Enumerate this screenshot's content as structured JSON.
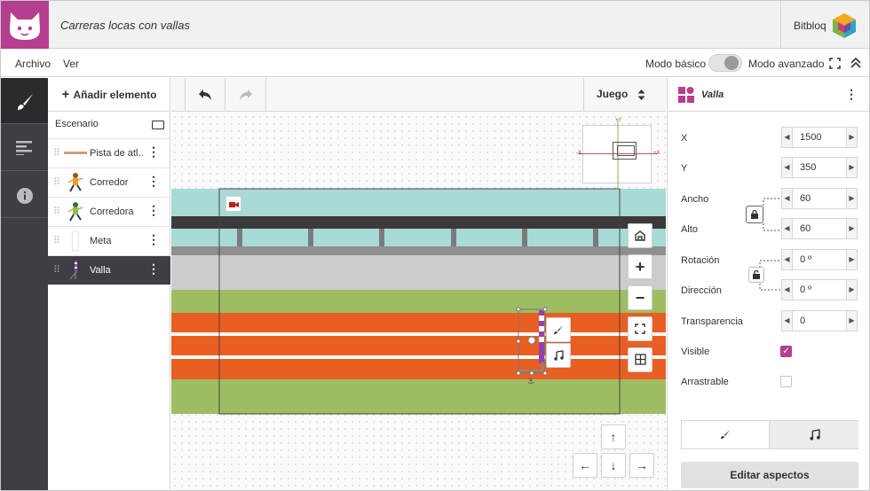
{
  "app": {
    "project_title": "Carreras locas con vallas",
    "brand_name": "Bitbloq",
    "brand_color": "#b63e8f"
  },
  "menubar": {
    "file_label": "Archivo",
    "view_label": "Ver",
    "basic_mode_label": "Modo básico",
    "advanced_mode_label": "Modo avanzado"
  },
  "left_nav": {
    "tabs": [
      {
        "icon": "brush-icon",
        "active": true
      },
      {
        "icon": "align-left-icon",
        "active": false
      },
      {
        "icon": "info-icon",
        "active": false
      }
    ]
  },
  "elements": {
    "add_label": "Añadir elemento",
    "scene_label": "Escenario",
    "items": [
      {
        "label": "Pista de atl…",
        "icon": "track-thumb-icon",
        "selected": false
      },
      {
        "label": "Corredor",
        "icon": "runner-thumb-icon",
        "selected": false
      },
      {
        "label": "Corredora",
        "icon": "runner-female-thumb-icon",
        "selected": false
      },
      {
        "label": "Meta",
        "icon": "finish-line-thumb-icon",
        "selected": false
      },
      {
        "label": "Valla",
        "icon": "hurdle-thumb-icon",
        "selected": true
      }
    ]
  },
  "canvas": {
    "scene_selector": "Juego",
    "minimap": {
      "plus_y": "+Y",
      "minus_x": "-X",
      "plus_x": "+X"
    }
  },
  "properties": {
    "element_name": "Valla",
    "fields": {
      "x": {
        "label": "X",
        "value": "1500"
      },
      "y": {
        "label": "Y",
        "value": "350"
      },
      "width": {
        "label": "Ancho",
        "value": "60"
      },
      "height": {
        "label": "Alto",
        "value": "60"
      },
      "rotation": {
        "label": "Rotación",
        "value": "0 º"
      },
      "direction": {
        "label": "Dirección",
        "value": "0 º"
      },
      "transparency": {
        "label": "Transparencia",
        "value": "0"
      }
    },
    "visible": {
      "label": "Visible",
      "checked": true
    },
    "draggable": {
      "label": "Arrastrable",
      "checked": false
    },
    "tabs": [
      {
        "icon": "brush-icon",
        "active": true
      },
      {
        "icon": "music-icon",
        "active": false
      }
    ],
    "edit_button": "Editar aspectos"
  },
  "colors": {
    "sidebar_dark": "#3d3f44",
    "accent": "#b63e8f",
    "track_orange": "#e85e23",
    "grass_green": "#9ebd63",
    "sky_teal": "#a8dad6"
  }
}
